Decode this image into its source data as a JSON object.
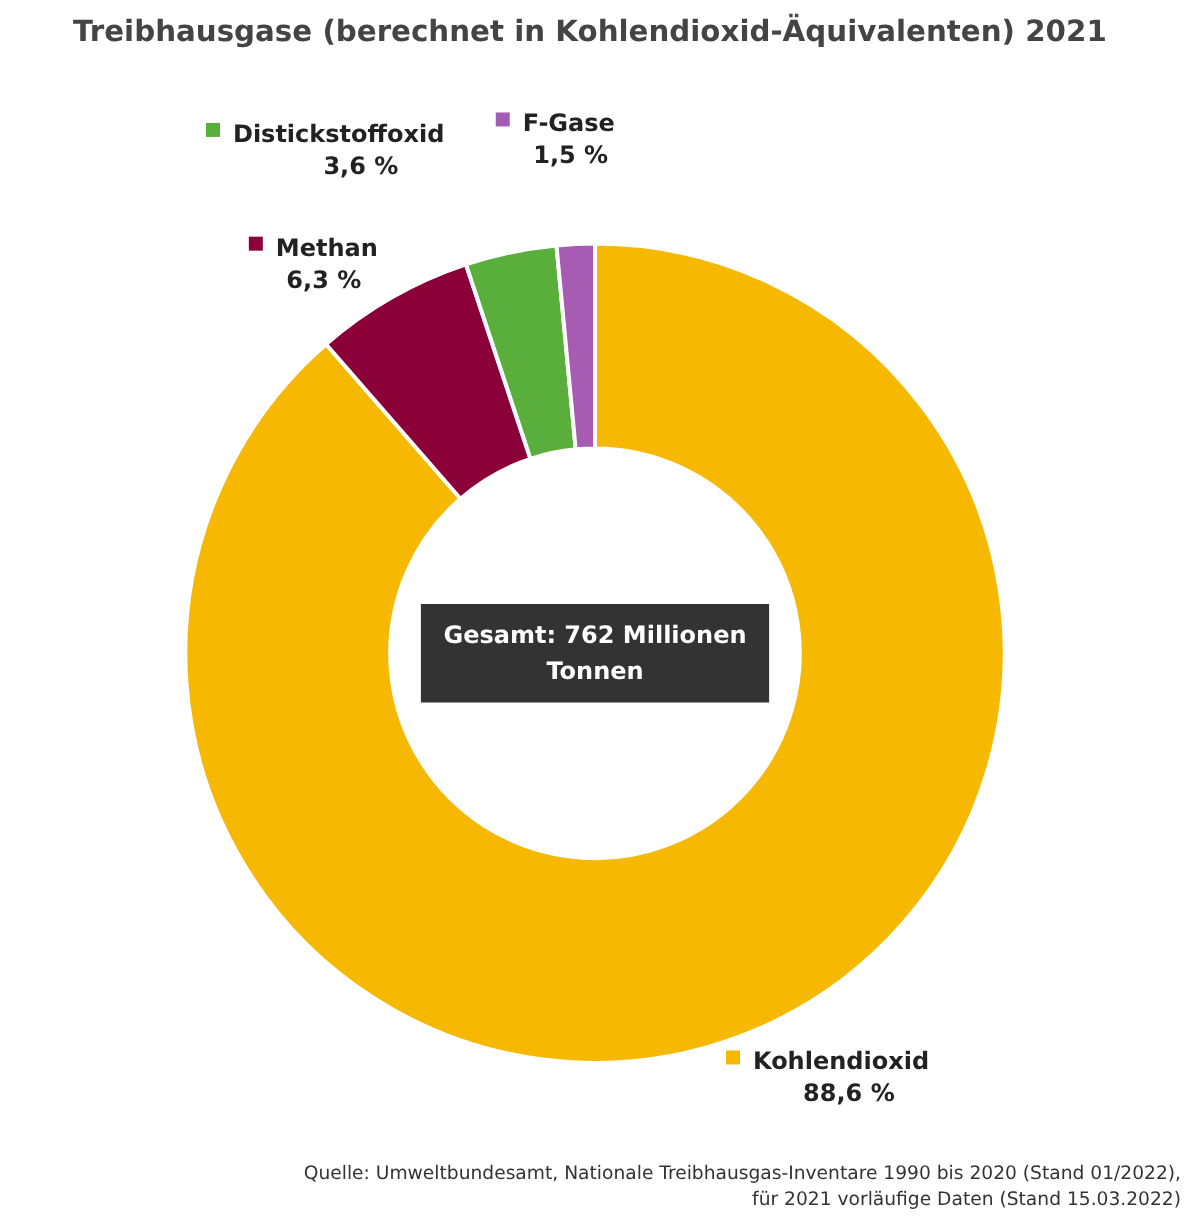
{
  "chart_data": {
    "type": "donut",
    "title": "Treibhausgase  (berechnet in Kohlendioxid-Äquivalenten) 2021",
    "categories": [
      "Kohlendioxid",
      "Methan",
      "Distickstoffoxid",
      "F-Gase"
    ],
    "values": [
      88.6,
      6.3,
      3.6,
      1.5
    ],
    "legend": "top",
    "value_labels": [
      "88,6 %",
      "6,3 %",
      "3,6 %",
      "1,5 %"
    ],
    "colors": [
      "#f6b800",
      "#8b0038",
      "#5aaf3c",
      "#a65cb2"
    ],
    "annotations": [
      "Gesamt: 762 Millionen Tonnen",
      "Quelle: Umweltbundesamt, Nationale Treibhausgas-Inventare 1990 bis 2020 (Stand 01/2022), für 2021 vorläufige Daten (Stand 15.03.2022)"
    ]
  }
}
